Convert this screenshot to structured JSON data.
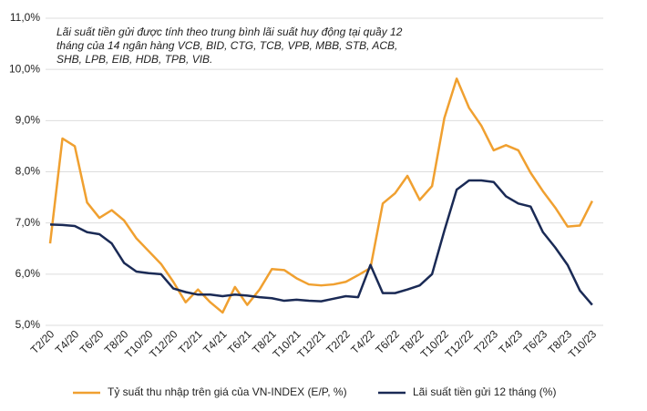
{
  "chart_data": {
    "type": "line",
    "annotation": [
      "Lãi suất tiền gửi được tính theo trung bình lãi suất huy động tại quầy 12",
      "tháng của 14 ngân hàng VCB, BID, CTG, TCB, VPB, MBB, STB, ACB,",
      "SHB, LPB, EIB, HDB, TPB, VIB."
    ],
    "categories": [
      "T2/20",
      null,
      "T4/20",
      null,
      "T6/20",
      null,
      "T8/20",
      null,
      "T10/20",
      null,
      "T12/20",
      null,
      "T2/21",
      null,
      "T4/21",
      null,
      "T6/21",
      null,
      "T8/21",
      null,
      "T10/21",
      null,
      "T12/21",
      null,
      "T2/22",
      null,
      "T4/22",
      null,
      "T6/22",
      null,
      "T8/22",
      null,
      "T10/22",
      null,
      "T12/22",
      null,
      "T2/23",
      null,
      "T4/23",
      null,
      "T6/23",
      null,
      "T8/23",
      null,
      "T10/23"
    ],
    "series": [
      {
        "name": "Tỷ suất thu nhập trên giá của VN-INDEX (E/P, %)",
        "color": "#f0a030",
        "values": [
          6.6,
          8.65,
          8.5,
          7.4,
          7.1,
          7.25,
          7.05,
          6.7,
          6.45,
          6.2,
          5.85,
          5.45,
          5.7,
          5.45,
          5.25,
          5.75,
          5.4,
          5.7,
          6.1,
          6.08,
          5.92,
          5.8,
          5.78,
          5.8,
          5.85,
          5.98,
          6.12,
          7.38,
          7.58,
          7.92,
          7.45,
          7.72,
          9.05,
          9.82,
          9.25,
          8.9,
          8.42,
          8.52,
          8.42,
          7.98,
          7.62,
          7.3,
          6.93,
          6.95,
          7.43
        ]
      },
      {
        "name": "Lãi suất tiền gửi 12 tháng (%)",
        "color": "#1a2a55",
        "values": [
          6.97,
          6.96,
          6.94,
          6.82,
          6.78,
          6.6,
          6.22,
          6.05,
          6.02,
          6.0,
          5.72,
          5.65,
          5.6,
          5.6,
          5.57,
          5.6,
          5.58,
          5.55,
          5.53,
          5.48,
          5.5,
          5.48,
          5.47,
          5.52,
          5.57,
          5.55,
          6.18,
          5.63,
          5.63,
          5.7,
          5.78,
          6.0,
          6.85,
          7.65,
          7.83,
          7.83,
          7.8,
          7.52,
          7.38,
          7.32,
          6.82,
          6.52,
          6.18,
          5.68,
          5.4
        ]
      }
    ],
    "ylim": [
      5,
      11
    ],
    "yticks": [
      {
        "value": 5,
        "label": "5,0%"
      },
      {
        "value": 6,
        "label": "6,0%"
      },
      {
        "value": 7,
        "label": "7,0%"
      },
      {
        "value": 8,
        "label": "8,0%"
      },
      {
        "value": 9,
        "label": "9,0%"
      },
      {
        "value": 10,
        "label": "10,0%"
      },
      {
        "value": 11,
        "label": "11,0%"
      }
    ],
    "grid": true
  }
}
